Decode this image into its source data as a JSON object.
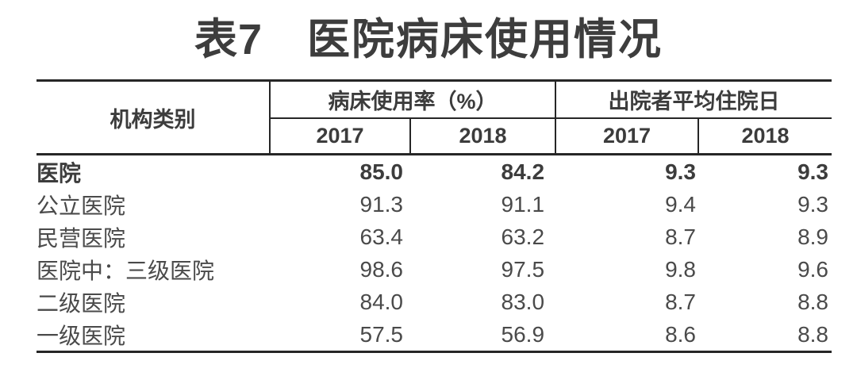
{
  "title": {
    "table_number": "表7",
    "text": "医院病床使用情况"
  },
  "colors": {
    "border": "#262626",
    "title_text": "#3d3d3d",
    "header_text": "#3c3c3c",
    "data_text": "#4a4a4a",
    "background": "#ffffff"
  },
  "table": {
    "corner_header": "机构类别",
    "group_headers": {
      "bed_utilization": "病床使用率（%）",
      "avg_stay": "出院者平均住院日"
    },
    "year_headers": [
      "2017",
      "2018",
      "2017",
      "2018"
    ],
    "rows": [
      {
        "label": "医院",
        "indent": 0,
        "bold": true,
        "values": [
          "85.0",
          "84.2",
          "9.3",
          "9.3"
        ]
      },
      {
        "label": "公立医院",
        "indent": 1,
        "bold": false,
        "values": [
          "91.3",
          "91.1",
          "9.4",
          "9.3"
        ]
      },
      {
        "label": "民营医院",
        "indent": 1,
        "bold": false,
        "values": [
          "63.4",
          "63.2",
          "8.7",
          "8.9"
        ]
      },
      {
        "label": "医院中：三级医院",
        "indent": 0,
        "bold": false,
        "values": [
          "98.6",
          "97.5",
          "9.8",
          "9.6"
        ]
      },
      {
        "label": "二级医院",
        "indent": 2,
        "bold": false,
        "values": [
          "84.0",
          "83.0",
          "8.7",
          "8.8"
        ]
      },
      {
        "label": "一级医院",
        "indent": 3,
        "bold": false,
        "values": [
          "57.5",
          "56.9",
          "8.6",
          "8.8"
        ]
      }
    ]
  },
  "chart_data": {
    "type": "table",
    "title": "表7 医院病床使用情况",
    "column_groups": [
      "机构类别",
      "病床使用率（%）",
      "出院者平均住院日"
    ],
    "columns": [
      "机构类别",
      "病床使用率(%) 2017",
      "病床使用率(%) 2018",
      "出院者平均住院日 2017",
      "出院者平均住院日 2018"
    ],
    "categories": [
      "医院",
      "公立医院",
      "民营医院",
      "医院中：三级医院",
      "二级医院",
      "一级医院"
    ],
    "series": [
      {
        "name": "病床使用率(%) 2017",
        "values": [
          85.0,
          91.3,
          63.4,
          98.6,
          84.0,
          57.5
        ]
      },
      {
        "name": "病床使用率(%) 2018",
        "values": [
          84.2,
          91.1,
          63.2,
          97.5,
          83.0,
          56.9
        ]
      },
      {
        "name": "出院者平均住院日 2017",
        "values": [
          9.3,
          9.4,
          8.7,
          9.8,
          8.7,
          8.6
        ]
      },
      {
        "name": "出院者平均住院日 2018",
        "values": [
          9.3,
          9.3,
          8.9,
          9.6,
          8.8,
          8.8
        ]
      }
    ]
  }
}
